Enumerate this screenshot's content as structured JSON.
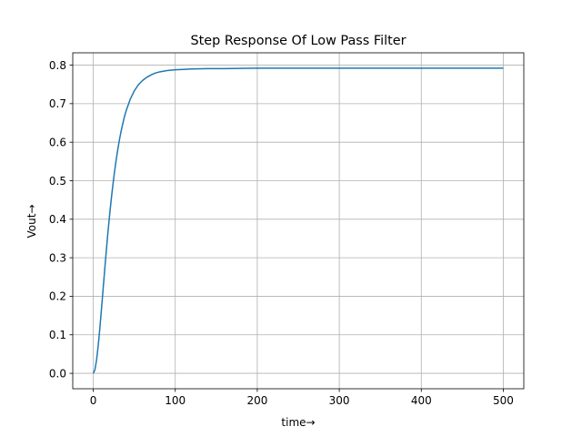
{
  "chart_data": {
    "type": "line",
    "title": "Step Response Of Low Pass Filter",
    "xlabel": "time→",
    "ylabel": "Vout→",
    "xlim": [
      -25,
      525
    ],
    "ylim": [
      -0.04,
      0.832
    ],
    "xticks": [
      0,
      100,
      200,
      300,
      400,
      500
    ],
    "yticks": [
      0.0,
      0.1,
      0.2,
      0.3,
      0.4,
      0.5,
      0.6,
      0.7,
      0.8
    ],
    "xtick_labels": [
      "0",
      "100",
      "200",
      "300",
      "400",
      "500"
    ],
    "ytick_labels": [
      "0.0",
      "0.1",
      "0.2",
      "0.3",
      "0.4",
      "0.5",
      "0.6",
      "0.7",
      "0.8"
    ],
    "grid": true,
    "series": [
      {
        "color": "#1f77b4",
        "x": [
          0,
          2,
          4,
          6,
          8,
          10,
          12,
          14,
          16,
          18,
          20,
          22,
          24,
          26,
          28,
          30,
          32,
          34,
          36,
          38,
          40,
          45,
          50,
          55,
          60,
          65,
          70,
          75,
          80,
          90,
          100,
          110,
          120,
          140,
          160,
          200,
          300,
          400,
          500
        ],
        "y": [
          0.0,
          0.009,
          0.034,
          0.071,
          0.116,
          0.166,
          0.218,
          0.27,
          0.32,
          0.368,
          0.412,
          0.453,
          0.49,
          0.524,
          0.555,
          0.582,
          0.607,
          0.629,
          0.648,
          0.666,
          0.681,
          0.711,
          0.733,
          0.749,
          0.76,
          0.768,
          0.774,
          0.779,
          0.782,
          0.786,
          0.788,
          0.789,
          0.79,
          0.791,
          0.791,
          0.792,
          0.792,
          0.792,
          0.792
        ]
      }
    ]
  }
}
